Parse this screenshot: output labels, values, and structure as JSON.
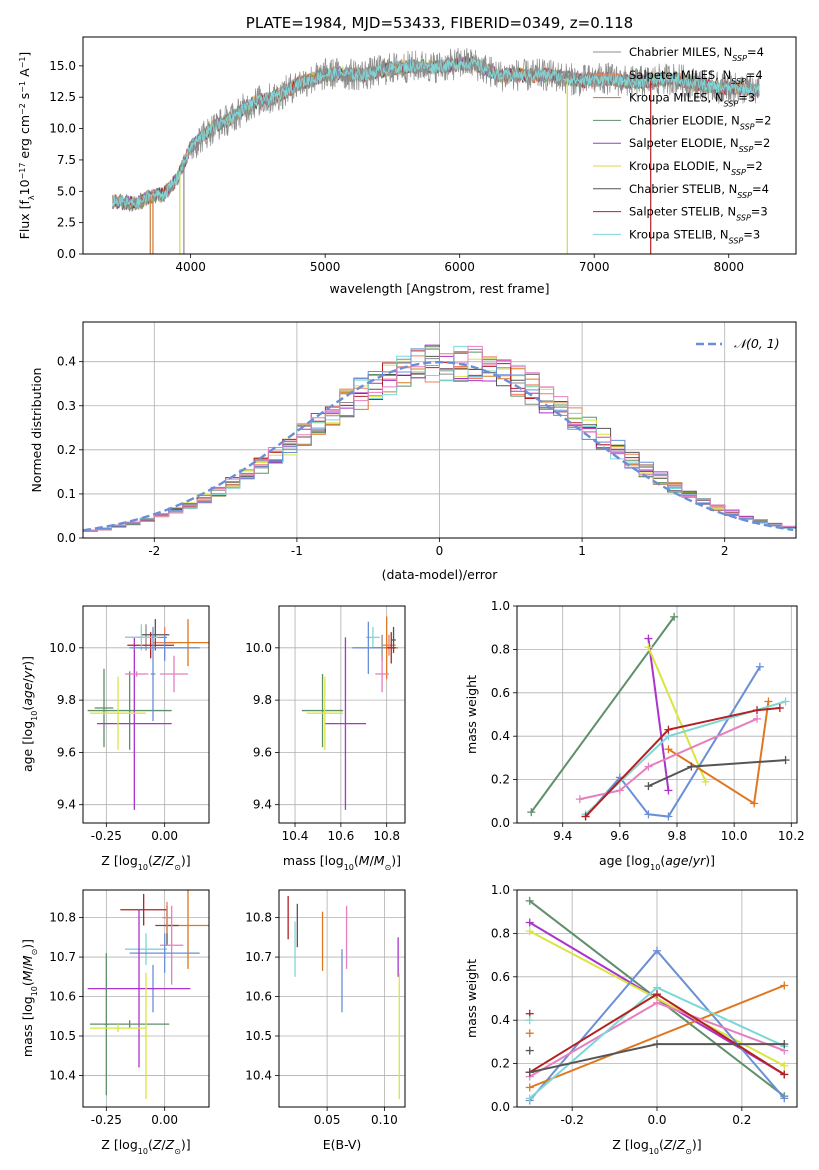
{
  "colors": {
    "Chabrier MILES": "#8c8c8c",
    "Salpeter MILES": "#f07f5f",
    "Kroupa MILES": "#c87a37",
    "Chabrier ELODIE": "#5f8f6b",
    "Salpeter ELODIE": "#9a3fbf",
    "Kroupa ELODIE": "#d6d94f",
    "Chabrier STELIB": "#555555",
    "Salpeter STELIB": "#b22222",
    "Kroupa STELIB": "#7fd6d6"
  },
  "chart_data": [
    {
      "id": "spectrum",
      "type": "line",
      "title": "PLATE=1984, MJD=53433, FIBERID=0349, z=0.118",
      "xlabel": "wavelength [Angstrom, rest frame]",
      "ylabel": "Flux [f_λ 10^-17 erg cm^-2 s^-1 A^-1]",
      "xlim": [
        3200,
        8500
      ],
      "ylim": [
        0,
        17.3
      ],
      "xticks": [
        4000,
        5000,
        6000,
        7000,
        8000
      ],
      "yticks": [
        0.0,
        2.5,
        5.0,
        7.5,
        10.0,
        12.5,
        15.0
      ],
      "legend_position": "right",
      "series": [
        {
          "name": "Chabrier MILES, N_SSP=4",
          "color": "#8c8c8c"
        },
        {
          "name": "Salpeter MILES, N_SSP=4",
          "color": "#f07f5f"
        },
        {
          "name": "Kroupa MILES, N_SSP=3",
          "color": "#c87a37"
        },
        {
          "name": "Chabrier ELODIE, N_SSP=2",
          "color": "#5f8f6b"
        },
        {
          "name": "Salpeter ELODIE, N_SSP=2",
          "color": "#9a3fbf"
        },
        {
          "name": "Kroupa ELODIE, N_SSP=2",
          "color": "#d6d94f"
        },
        {
          "name": "Chabrier STELIB, N_SSP=4",
          "color": "#555555"
        },
        {
          "name": "Salpeter STELIB, N_SSP=3",
          "color": "#b22222"
        },
        {
          "name": "Kroupa STELIB, N_SSP=3",
          "color": "#7fd6d6"
        }
      ],
      "envelope_x": [
        3420,
        3500,
        3600,
        3700,
        3800,
        3900,
        4000,
        4100,
        4200,
        4300,
        4400,
        4500,
        4600,
        4700,
        4800,
        4900,
        5000,
        5100,
        5200,
        5300,
        5400,
        5500,
        5600,
        5700,
        5800,
        5900,
        6000,
        6100,
        6200,
        6300,
        6400,
        6500,
        6600,
        6700,
        6800,
        6900,
        7000,
        7100,
        7200,
        7300,
        7400,
        7500,
        7600,
        7700,
        7800,
        7900,
        8000,
        8100,
        8230
      ],
      "envelope_y": [
        4.2,
        4.1,
        4.0,
        4.6,
        4.8,
        6.0,
        8.5,
        9.5,
        10.3,
        10.8,
        11.6,
        12.2,
        12.4,
        12.9,
        13.6,
        13.9,
        14.3,
        14.4,
        14.3,
        14.3,
        14.6,
        14.8,
        14.9,
        15.0,
        14.9,
        15.0,
        15.2,
        15.2,
        14.7,
        14.2,
        14.3,
        14.2,
        14.3,
        14.2,
        14.0,
        13.8,
        13.9,
        14.0,
        13.8,
        13.7,
        13.8,
        13.9,
        14.0,
        13.7,
        13.5,
        13.3,
        13.2,
        13.2,
        13.0
      ]
    },
    {
      "id": "residuals",
      "type": "bar",
      "xlabel": "(data-model)/error",
      "ylabel": "Normed distribution",
      "xlim": [
        -2.5,
        2.5
      ],
      "ylim": [
        0,
        0.49
      ],
      "xticks": [
        -2,
        -1,
        0,
        1,
        2
      ],
      "yticks": [
        0.0,
        0.1,
        0.2,
        0.3,
        0.4
      ],
      "grid": true,
      "legend": "𝒩(0, 1)",
      "legend_position": "top-right",
      "bin_width": 0.1
    },
    {
      "id": "age-vs-Z",
      "type": "scatter",
      "xlabel": "Z [log10(Z/Z⊙)]",
      "ylabel": "age  [log10(age/yr)]",
      "xlim": [
        -0.35,
        0.19
      ],
      "ylim": [
        9.33,
        10.16
      ],
      "xticks": [
        -0.25,
        0.0
      ],
      "yticks": [
        9.4,
        9.6,
        9.8,
        10.0
      ],
      "grid": true,
      "error_bars": [
        {
          "series": "Chabrier MILES",
          "x": -0.08,
          "y": 10.04,
          "xerr": 0.09,
          "yerr": 0.05,
          "color": "#8c8c8c"
        },
        {
          "series": "Salpeter MILES",
          "x": 0.0,
          "y": 10.02,
          "xerr": 0.05,
          "yerr": 0.06,
          "color": "#f07f5f"
        },
        {
          "series": "Kroupa MILES",
          "x": 0.1,
          "y": 10.02,
          "xerr": 0.1,
          "yerr": 0.09,
          "color": "#e0771f"
        },
        {
          "series": "Chabrier ELODIE",
          "x": -0.15,
          "y": 9.76,
          "xerr": 0.18,
          "yerr": 0.15,
          "color": "#5f8f6b"
        },
        {
          "series": "Chabrier ELODIE b",
          "x": -0.26,
          "y": 9.77,
          "xerr": 0.04,
          "yerr": 0.15,
          "color": "#5f8f6b"
        },
        {
          "series": "Salpeter ELODIE",
          "x": -0.13,
          "y": 9.71,
          "xerr": 0.16,
          "yerr": 0.33,
          "color": "#aa33cc"
        },
        {
          "series": "Kroupa ELODIE",
          "x": -0.2,
          "y": 9.75,
          "xerr": 0.12,
          "yerr": 0.14,
          "color": "#d9e542"
        },
        {
          "series": "Chabrier STELIB",
          "x": -0.04,
          "y": 10.05,
          "xerr": 0.06,
          "yerr": 0.06,
          "color": "#555555"
        },
        {
          "series": "Salpeter STELIB",
          "x": -0.06,
          "y": 10.01,
          "xerr": 0.1,
          "yerr": 0.05,
          "color": "#b22222"
        },
        {
          "series": "Kroupa STELIB",
          "x": -0.1,
          "y": 10.04,
          "xerr": 0.07,
          "yerr": 0.05,
          "color": "#7fd6d6"
        },
        {
          "series": "blue",
          "x": 0.0,
          "y": 10.0,
          "xerr": 0.15,
          "yerr": 0.05,
          "color": "#6b8fd6"
        },
        {
          "series": "blue b",
          "x": -0.05,
          "y": 9.9,
          "xerr": 0.01,
          "yerr": 0.18,
          "color": "#6b8fd6"
        },
        {
          "series": "pink",
          "x": 0.04,
          "y": 9.9,
          "xerr": 0.06,
          "yerr": 0.07,
          "color": "#e67fbf"
        },
        {
          "series": "pink b",
          "x": -0.12,
          "y": 9.9,
          "xerr": 0.05,
          "yerr": 0.01,
          "color": "#e67fbf"
        }
      ]
    },
    {
      "id": "age-vs-mass",
      "type": "scatter",
      "xlabel": "mass [log10(M/M⊙)]",
      "ylabel": "",
      "xlim": [
        10.33,
        10.88
      ],
      "ylim": [
        9.33,
        10.16
      ],
      "xticks": [
        10.4,
        10.6,
        10.8
      ],
      "yticks": [
        9.4,
        9.6,
        9.8,
        10.0
      ],
      "grid": true,
      "error_bars": [
        {
          "series": "Chabrier MILES",
          "x": 10.78,
          "y": 10.0,
          "xerr": 0.04,
          "yerr": 0.05,
          "color": "#8c8c8c"
        },
        {
          "series": "Salpeter MILES",
          "x": 10.81,
          "y": 10.01,
          "xerr": 0.03,
          "yerr": 0.04,
          "color": "#f07f5f"
        },
        {
          "series": "Kroupa MILES",
          "x": 10.8,
          "y": 10.0,
          "xerr": 0.05,
          "yerr": 0.12,
          "color": "#e0771f"
        },
        {
          "series": "Chabrier ELODIE",
          "x": 10.52,
          "y": 9.76,
          "xerr": 0.09,
          "yerr": 0.14,
          "color": "#5f8f6b"
        },
        {
          "series": "Salpeter ELODIE",
          "x": 10.62,
          "y": 9.71,
          "xerr": 0.09,
          "yerr": 0.33,
          "color": "#aa33cc"
        },
        {
          "series": "Kroupa ELODIE",
          "x": 10.53,
          "y": 9.75,
          "xerr": 0.08,
          "yerr": 0.14,
          "color": "#d9e542"
        },
        {
          "series": "Chabrier STELIB",
          "x": 10.83,
          "y": 10.03,
          "xerr": 0.01,
          "yerr": 0.05,
          "color": "#555555"
        },
        {
          "series": "Salpeter STELIB",
          "x": 10.82,
          "y": 10.0,
          "xerr": 0.02,
          "yerr": 0.06,
          "color": "#b22222"
        },
        {
          "series": "Kroupa STELIB",
          "x": 10.74,
          "y": 10.04,
          "xerr": 0.03,
          "yerr": 0.04,
          "color": "#7fd6d6"
        },
        {
          "series": "blue",
          "x": 10.72,
          "y": 10.0,
          "xerr": 0.07,
          "yerr": 0.1,
          "color": "#6b8fd6"
        },
        {
          "series": "pink",
          "x": 10.78,
          "y": 9.9,
          "xerr": 0.03,
          "yerr": 0.07,
          "color": "#e67fbf"
        }
      ]
    },
    {
      "id": "massweight-vs-age",
      "type": "line",
      "xlabel": "age  [log10(age/yr)]",
      "ylabel": "mass weight",
      "xlim": [
        9.24,
        10.22
      ],
      "ylim": [
        0,
        1.0
      ],
      "xticks": [
        9.4,
        9.6,
        9.8,
        10.0,
        10.2
      ],
      "yticks": [
        0.0,
        0.2,
        0.4,
        0.6,
        0.8,
        1.0
      ],
      "grid": true,
      "series": [
        {
          "color": "#5f8f6b",
          "points": [
            [
              9.29,
              0.05
            ],
            [
              9.79,
              0.95
            ]
          ]
        },
        {
          "color": "#aa33cc",
          "points": [
            [
              9.7,
              0.85
            ],
            [
              9.77,
              0.15
            ]
          ]
        },
        {
          "color": "#d9e542",
          "points": [
            [
              9.7,
              0.81
            ],
            [
              9.9,
              0.19
            ]
          ]
        },
        {
          "color": "#6b8fd6",
          "points": [
            [
              9.48,
              0.03
            ],
            [
              9.6,
              0.21
            ],
            [
              9.7,
              0.04
            ],
            [
              9.77,
              0.03
            ],
            [
              10.09,
              0.72
            ]
          ]
        },
        {
          "color": "#e0771f",
          "points": [
            [
              9.77,
              0.34
            ],
            [
              10.07,
              0.09
            ],
            [
              10.12,
              0.56
            ]
          ]
        },
        {
          "color": "#e67fbf",
          "points": [
            [
              9.46,
              0.11
            ],
            [
              9.6,
              0.15
            ],
            [
              9.7,
              0.26
            ],
            [
              10.08,
              0.48
            ]
          ]
        },
        {
          "color": "#7fd6d6",
          "points": [
            [
              9.48,
              0.04
            ],
            [
              9.77,
              0.4
            ],
            [
              10.18,
              0.56
            ]
          ]
        },
        {
          "color": "#b22222",
          "points": [
            [
              9.48,
              0.03
            ],
            [
              9.77,
              0.43
            ],
            [
              10.08,
              0.52
            ],
            [
              10.16,
              0.53
            ]
          ]
        },
        {
          "color": "#555555",
          "points": [
            [
              9.7,
              0.17
            ],
            [
              9.85,
              0.26
            ],
            [
              10.18,
              0.29
            ]
          ]
        }
      ]
    },
    {
      "id": "mass-vs-Z",
      "type": "scatter",
      "xlabel": "Z [log10(Z/Z⊙)]",
      "ylabel": "mass [log10(M/M⊙)]",
      "xlim": [
        -0.35,
        0.19
      ],
      "ylim": [
        10.32,
        10.87
      ],
      "xticks": [
        -0.25,
        0.0
      ],
      "yticks": [
        10.4,
        10.5,
        10.6,
        10.7,
        10.8
      ],
      "grid": true,
      "error_bars": [
        {
          "series": "Salpeter STELIB",
          "x": -0.09,
          "y": 10.82,
          "xerr": 0.1,
          "yerr": 0.04,
          "color": "#b22222"
        },
        {
          "series": "Kroupa MILES",
          "x": 0.1,
          "y": 10.78,
          "xerr": 0.1,
          "yerr": 0.11,
          "color": "#e0771f"
        },
        {
          "series": "Chabrier STELIB",
          "x": 0.01,
          "y": 10.78,
          "xerr": 0.05,
          "yerr": 0.05,
          "color": "#555555"
        },
        {
          "series": "Salpeter MILES",
          "x": 0.01,
          "y": 10.8,
          "xerr": 0.02,
          "yerr": 0.04,
          "color": "#f07f5f"
        },
        {
          "series": "Kroupa STELIB",
          "x": -0.08,
          "y": 10.72,
          "xerr": 0.09,
          "yerr": 0.04,
          "color": "#7fd6d6"
        },
        {
          "series": "pink",
          "x": 0.03,
          "y": 10.73,
          "xerr": 0.05,
          "yerr": 0.1,
          "color": "#e67fbf"
        },
        {
          "series": "blue",
          "x": 0.0,
          "y": 10.71,
          "xerr": 0.15,
          "yerr": 0.05,
          "color": "#6b8fd6"
        },
        {
          "series": "blue b",
          "x": -0.05,
          "y": 10.62,
          "xerr": 0.01,
          "yerr": 0.06,
          "color": "#6b8fd6"
        },
        {
          "series": "Salpeter ELODIE",
          "x": -0.11,
          "y": 10.62,
          "xerr": 0.22,
          "yerr": 0.2,
          "color": "#aa33cc"
        },
        {
          "series": "Chabrier ELODIE",
          "x": -0.15,
          "y": 10.53,
          "xerr": 0.17,
          "yerr": 0.01,
          "color": "#5f8f6b"
        },
        {
          "series": "Chabrier ELODIE b",
          "x": -0.25,
          "y": 10.53,
          "xerr": 0.01,
          "yerr": 0.18,
          "color": "#5f8f6b"
        },
        {
          "series": "Kroupa ELODIE",
          "x": -0.2,
          "y": 10.52,
          "xerr": 0.12,
          "yerr": 0.01,
          "color": "#d9e542"
        },
        {
          "series": "Kroupa ELODIE b",
          "x": -0.08,
          "y": 10.5,
          "xerr": 0.01,
          "yerr": 0.16,
          "color": "#d9e542"
        }
      ]
    },
    {
      "id": "mass-vs-EBV",
      "type": "scatter",
      "xlabel": "E(B-V)",
      "ylabel": "",
      "xlim": [
        0.008,
        0.118
      ],
      "ylim": [
        10.32,
        10.87
      ],
      "xticks": [
        0.0,
        0.05,
        0.1
      ],
      "yticks": [
        10.4,
        10.5,
        10.6,
        10.7,
        10.8
      ],
      "grid": true,
      "error_bars": [
        {
          "series": "Salpeter STELIB",
          "x": 0.016,
          "y": 10.8,
          "xerr": 0.0,
          "yerr": 0.055,
          "color": "#b22222"
        },
        {
          "series": "Chabrier STELIB",
          "x": 0.024,
          "y": 10.78,
          "xerr": 0.0,
          "yerr": 0.055,
          "color": "#555555"
        },
        {
          "series": "Kroupa STELIB",
          "x": 0.022,
          "y": 10.72,
          "xerr": 0.0,
          "yerr": 0.07,
          "color": "#7fd6d6"
        },
        {
          "series": "Kroupa MILES",
          "x": 0.046,
          "y": 10.74,
          "xerr": 0.0,
          "yerr": 0.075,
          "color": "#e0771f"
        },
        {
          "series": "pink",
          "x": 0.067,
          "y": 10.75,
          "xerr": 0.0,
          "yerr": 0.08,
          "color": "#e67fbf"
        },
        {
          "series": "blue",
          "x": 0.063,
          "y": 10.64,
          "xerr": 0.0,
          "yerr": 0.08,
          "color": "#6b8fd6"
        },
        {
          "series": "Salpeter ELODIE",
          "x": 0.112,
          "y": 10.7,
          "xerr": 0.0,
          "yerr": 0.05,
          "color": "#aa33cc"
        },
        {
          "series": "Kroupa ELODIE",
          "x": 0.113,
          "y": 10.5,
          "xerr": 0.0,
          "yerr": 0.16,
          "color": "#d9e542"
        }
      ]
    },
    {
      "id": "massweight-vs-Z",
      "type": "line",
      "xlabel": "Z [log10(Z/Z⊙)]",
      "ylabel": "mass weight",
      "xlim": [
        -0.33,
        0.33
      ],
      "ylim": [
        0,
        1.0
      ],
      "xticks": [
        -0.2,
        0.0,
        0.2
      ],
      "yticks": [
        0.0,
        0.2,
        0.4,
        0.6,
        0.8,
        1.0
      ],
      "grid": true,
      "series": [
        {
          "color": "#5f8f6b",
          "points": [
            [
              -0.3,
              0.95
            ],
            [
              0.3,
              0.05
            ]
          ]
        },
        {
          "color": "#aa33cc",
          "points": [
            [
              -0.3,
              0.85
            ],
            [
              0.3,
              0.15
            ]
          ]
        },
        {
          "color": "#d9e542",
          "points": [
            [
              -0.3,
              0.81
            ],
            [
              0.3,
              0.19
            ]
          ]
        },
        {
          "color": "#6b8fd6",
          "points": [
            [
              -0.3,
              0.03
            ],
            [
              0.0,
              0.72
            ],
            [
              0.3,
              0.04
            ]
          ]
        },
        {
          "color": "#e0771f",
          "points": [
            [
              -0.3,
              0.09
            ],
            [
              0.3,
              0.56
            ]
          ]
        },
        {
          "color": "#e67fbf",
          "points": [
            [
              -0.3,
              0.14
            ],
            [
              0.0,
              0.48
            ],
            [
              0.3,
              0.26
            ]
          ]
        },
        {
          "color": "#7fd6d6",
          "points": [
            [
              -0.3,
              0.04
            ],
            [
              0.0,
              0.55
            ],
            [
              0.3,
              0.28
            ]
          ]
        },
        {
          "color": "#b22222",
          "points": [
            [
              -0.3,
              0.16
            ],
            [
              0.0,
              0.52
            ],
            [
              0.3,
              0.15
            ]
          ]
        },
        {
          "color": "#555555",
          "points": [
            [
              -0.3,
              0.16
            ],
            [
              0.0,
              0.29
            ],
            [
              0.3,
              0.29
            ]
          ]
        }
      ],
      "extra_points": [
        {
          "color": "#b22222",
          "x": -0.3,
          "y": 0.43
        },
        {
          "color": "#e0771f",
          "x": -0.3,
          "y": 0.34
        },
        {
          "color": "#7fd6d6",
          "x": -0.3,
          "y": 0.4
        },
        {
          "color": "#555555",
          "x": -0.3,
          "y": 0.26
        }
      ]
    }
  ]
}
